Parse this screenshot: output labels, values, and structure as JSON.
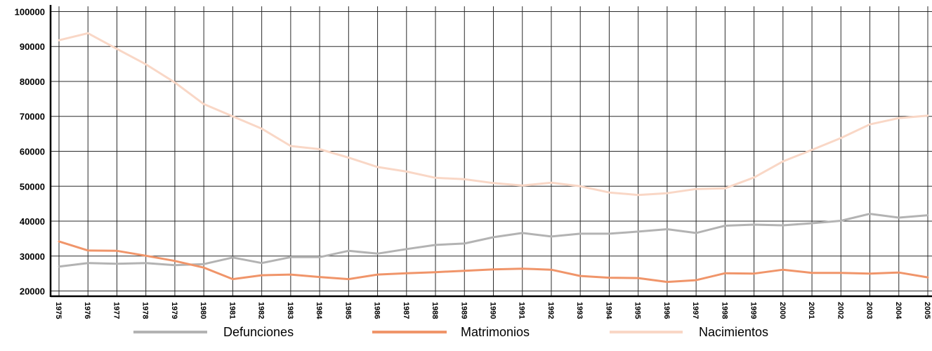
{
  "chart_data": {
    "type": "line",
    "title": "",
    "xlabel": "",
    "ylabel": "",
    "ylim": [
      18500,
      101500
    ],
    "yticks": [
      "100000",
      "90000",
      "80000",
      "70000",
      "60000",
      "50000",
      "40000",
      "30000",
      "20000"
    ],
    "x": [
      "1975",
      "1976",
      "1977",
      "1978",
      "1979",
      "1980",
      "1981",
      "1982",
      "1983",
      "1984",
      "1985",
      "1986",
      "1987",
      "1988",
      "1989",
      "1990",
      "1991",
      "1992",
      "1993",
      "1994",
      "1995",
      "1996",
      "1997",
      "1998",
      "1999",
      "2000",
      "2001",
      "2002",
      "2003",
      "2004",
      "2005"
    ],
    "grid": true,
    "legend": "bottom",
    "series": [
      {
        "name": "Defunciones",
        "color": "#b3b3b3",
        "values": [
          27000,
          28000,
          27800,
          28000,
          27400,
          27700,
          29600,
          28000,
          29700,
          29700,
          31500,
          30700,
          32000,
          33200,
          33600,
          35400,
          36600,
          35600,
          36400,
          36400,
          37000,
          37700,
          36600,
          38700,
          39000,
          38800,
          39400,
          40100,
          42100,
          41000,
          41700
        ]
      },
      {
        "name": "Matrimonios",
        "color": "#f0956a",
        "values": [
          34200,
          31600,
          31500,
          30100,
          28600,
          26700,
          23400,
          24500,
          24700,
          24000,
          23400,
          24700,
          25100,
          25400,
          25800,
          26200,
          26400,
          26100,
          24300,
          23800,
          23700,
          22600,
          23100,
          25100,
          25000,
          26100,
          25200,
          25200,
          25000,
          25300,
          23900
        ]
      },
      {
        "name": "Nacimientos",
        "color": "#f9d7c6",
        "values": [
          91800,
          93800,
          89300,
          84900,
          79700,
          73500,
          70000,
          66500,
          61500,
          60600,
          58200,
          55500,
          54200,
          52400,
          52000,
          50900,
          50200,
          51000,
          50000,
          48200,
          47500,
          48000,
          49200,
          49400,
          52500,
          57100,
          60400,
          63800,
          67700,
          69500,
          70200
        ]
      }
    ]
  }
}
